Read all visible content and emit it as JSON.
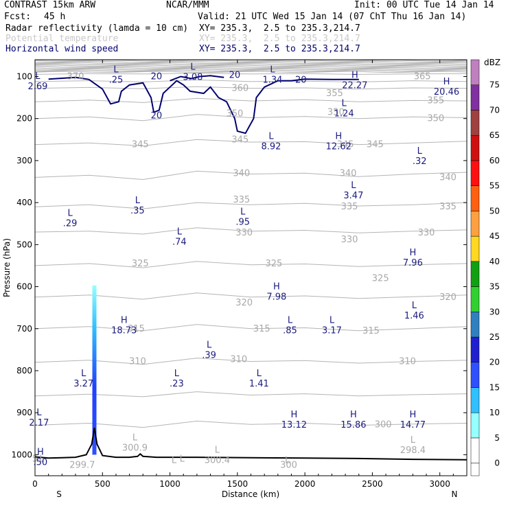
{
  "header": {
    "model": "CONTRAST 15km ARW",
    "center": "NCAR/MMM",
    "init": "Init: 00 UTC Tue 14 Jan 14",
    "fcst_label": "Fcst:",
    "fcst_value": "45 h",
    "valid": "Valid: 21 UTC Wed 15 Jan 14 (07 ChT Thu 16 Jan 14)",
    "fields": [
      {
        "name": "Radar reflectivity (lamda = 10 cm)",
        "xy": "XY= 235.3,  2.5 to 235.3,214.7"
      },
      {
        "name": "Potential temperature",
        "xy": "XY= 235.3,  2.5 to 235.3,214.7"
      },
      {
        "name": "Horizontal wind speed",
        "xy": "XY= 235.3,  2.5 to 235.3,214.7"
      }
    ]
  },
  "chart_data": {
    "type": "line",
    "xlabel": "Distance (km)",
    "ylabel": "Pressure (hPa)",
    "xlim": [
      0,
      3200
    ],
    "ylim": [
      1050,
      60
    ],
    "x_ticks": [
      0,
      500,
      1000,
      1500,
      2000,
      2500,
      3000
    ],
    "y_ticks": [
      100,
      200,
      300,
      400,
      500,
      600,
      700,
      800,
      900,
      1000
    ],
    "x_end_labels": {
      "left": "S",
      "right": "N"
    },
    "colorbar": {
      "unit": "dBZ",
      "levels": [
        0,
        5,
        10,
        15,
        20,
        25,
        30,
        35,
        40,
        45,
        50,
        55,
        60,
        65,
        70,
        75
      ],
      "colors": [
        "#ffffff",
        "#96ffff",
        "#30c0ff",
        "#3050ff",
        "#2020d0",
        "#3080c0",
        "#30d030",
        "#10a010",
        "#ffd820",
        "#ffa040",
        "#ff6010",
        "#ff1010",
        "#d01010",
        "#a04040",
        "#8030a0",
        "#c080c0"
      ]
    },
    "reflectivity_column": {
      "x": 440,
      "p_top": 597,
      "p_bottom": 1000
    },
    "theta_contours": [
      {
        "label": "370",
        "p": [
          95,
          93,
          94,
          92,
          94,
          93,
          95,
          94,
          93
        ]
      },
      {
        "label": "365",
        "p": [
          112,
          110,
          113,
          108,
          112,
          111,
          113,
          110,
          112
        ]
      },
      {
        "label": "360",
        "p": [
          128,
          126,
          129,
          124,
          128,
          127,
          130,
          127,
          128
        ]
      },
      {
        "label": "355",
        "p": [
          160,
          156,
          162,
          152,
          158,
          155,
          160,
          157,
          158
        ]
      },
      {
        "label": "350",
        "p": [
          200,
          196,
          205,
          190,
          198,
          195,
          200,
          196,
          198
        ]
      },
      {
        "label": "345",
        "p": [
          262,
          258,
          265,
          250,
          256,
          255,
          262,
          258,
          254
        ]
      },
      {
        "label": "340",
        "p": [
          340,
          335,
          345,
          325,
          332,
          330,
          338,
          332,
          328
        ]
      },
      {
        "label": "335",
        "p": [
          410,
          405,
          415,
          400,
          405,
          402,
          408,
          405,
          400
        ]
      },
      {
        "label": "330",
        "p": [
          470,
          468,
          475,
          460,
          468,
          466,
          472,
          468,
          465
        ]
      },
      {
        "label": "325",
        "p": [
          550,
          545,
          555,
          540,
          548,
          546,
          552,
          548,
          545
        ]
      },
      {
        "label": "320",
        "p": [
          625,
          620,
          630,
          615,
          625,
          622,
          628,
          624,
          620
        ]
      },
      {
        "label": "315",
        "p": [
          700,
          695,
          705,
          690,
          700,
          698,
          705,
          700,
          695
        ]
      },
      {
        "label": "310",
        "p": [
          780,
          775,
          785,
          770,
          778,
          776,
          782,
          778,
          775
        ]
      },
      {
        "label": "305",
        "p": [
          860,
          856,
          862,
          850,
          858,
          855,
          860,
          857,
          855
        ]
      },
      {
        "label": "300",
        "p": [
          930,
          925,
          935,
          920,
          928,
          925,
          930,
          927,
          925
        ]
      }
    ],
    "theta_x": [
      0,
      400,
      800,
      1200,
      1600,
      2000,
      2400,
      2800,
      3200
    ],
    "theta_labels": [
      {
        "text": "370",
        "x": 300,
        "p": 100
      },
      {
        "text": "365",
        "x": 2870,
        "p": 100
      },
      {
        "text": "360",
        "x": 1520,
        "p": 128
      },
      {
        "text": "355",
        "x": 2220,
        "p": 140
      },
      {
        "text": "355",
        "x": 2970,
        "p": 157
      },
      {
        "text": "350",
        "x": 1480,
        "p": 188
      },
      {
        "text": "350",
        "x": 2230,
        "p": 185
      },
      {
        "text": "350",
        "x": 2970,
        "p": 200
      },
      {
        "text": "345",
        "x": 780,
        "p": 262
      },
      {
        "text": "345",
        "x": 1520,
        "p": 250
      },
      {
        "text": "345",
        "x": 2300,
        "p": 262
      },
      {
        "text": "345",
        "x": 2520,
        "p": 262
      },
      {
        "text": "340",
        "x": 1530,
        "p": 330
      },
      {
        "text": "340",
        "x": 2320,
        "p": 330
      },
      {
        "text": "340",
        "x": 3060,
        "p": 340
      },
      {
        "text": "335",
        "x": 1530,
        "p": 393
      },
      {
        "text": "335",
        "x": 2330,
        "p": 410
      },
      {
        "text": "335",
        "x": 3060,
        "p": 410
      },
      {
        "text": "330",
        "x": 1550,
        "p": 472
      },
      {
        "text": "330",
        "x": 2330,
        "p": 488
      },
      {
        "text": "330",
        "x": 2900,
        "p": 472
      },
      {
        "text": "325",
        "x": 780,
        "p": 545
      },
      {
        "text": "325",
        "x": 1770,
        "p": 545
      },
      {
        "text": "325",
        "x": 2560,
        "p": 580
      },
      {
        "text": "320",
        "x": 1550,
        "p": 638
      },
      {
        "text": "320",
        "x": 3060,
        "p": 625
      },
      {
        "text": "315",
        "x": 750,
        "p": 700
      },
      {
        "text": "315",
        "x": 1680,
        "p": 700
      },
      {
        "text": "315",
        "x": 2490,
        "p": 705
      },
      {
        "text": "310",
        "x": 760,
        "p": 778
      },
      {
        "text": "310",
        "x": 1510,
        "p": 773
      },
      {
        "text": "310",
        "x": 2760,
        "p": 778
      },
      {
        "text": "300",
        "x": 2580,
        "p": 928
      },
      {
        "text": "L",
        "x": 50,
        "p": 1010
      },
      {
        "text": "5",
        "x": 0,
        "p": 1010
      },
      {
        "text": "L",
        "x": 1090,
        "p": 1010
      },
      {
        "text": "L",
        "x": 1030,
        "p": 1013
      },
      {
        "text": "L",
        "x": 1870,
        "p": 1013
      }
    ],
    "wind_contours": {
      "label": "20",
      "label_positions": [
        {
          "x": 900,
          "p": 100
        },
        {
          "x": 1480,
          "p": 97
        },
        {
          "x": 1970,
          "p": 108
        },
        {
          "x": 900,
          "p": 193
        }
      ]
    },
    "extrema": [
      {
        "kind": "L",
        "value": ".25",
        "x": 600,
        "p": 97,
        "color": "navy"
      },
      {
        "kind": "L",
        "value": "3.08",
        "x": 1170,
        "p": 90,
        "color": "navy"
      },
      {
        "kind": "L",
        "value": "1.34",
        "x": 1760,
        "p": 97,
        "color": "navy"
      },
      {
        "kind": "L",
        "value": "2.69",
        "x": 20,
        "p": 112,
        "color": "navy"
      },
      {
        "kind": "H",
        "value": "22.27",
        "x": 2370,
        "p": 110,
        "color": "navy"
      },
      {
        "kind": "H",
        "value": "20.46",
        "x": 3050,
        "p": 125,
        "color": "navy"
      },
      {
        "kind": "L",
        "value": "1.24",
        "x": 2290,
        "p": 177,
        "color": "navy"
      },
      {
        "kind": "L",
        "value": "8.92",
        "x": 1750,
        "p": 255,
        "color": "navy"
      },
      {
        "kind": "H",
        "value": "12.62",
        "x": 2250,
        "p": 255,
        "color": "navy"
      },
      {
        "kind": "L",
        "value": ".32",
        "x": 2850,
        "p": 290,
        "color": "navy"
      },
      {
        "kind": "L",
        "value": "3.47",
        "x": 2360,
        "p": 372,
        "color": "navy"
      },
      {
        "kind": "L",
        "value": ".35",
        "x": 760,
        "p": 408,
        "color": "navy"
      },
      {
        "kind": "L",
        "value": ".29",
        "x": 260,
        "p": 438,
        "color": "navy"
      },
      {
        "kind": "L",
        "value": ".95",
        "x": 1540,
        "p": 435,
        "color": "navy"
      },
      {
        "kind": "L",
        "value": ".74",
        "x": 1070,
        "p": 482,
        "color": "navy"
      },
      {
        "kind": "H",
        "value": "7.96",
        "x": 2800,
        "p": 532,
        "color": "navy"
      },
      {
        "kind": "H",
        "value": "7.98",
        "x": 1790,
        "p": 613,
        "color": "navy"
      },
      {
        "kind": "L",
        "value": "1.46",
        "x": 2810,
        "p": 658,
        "color": "navy"
      },
      {
        "kind": "H",
        "value": "18.73",
        "x": 660,
        "p": 693,
        "color": "navy"
      },
      {
        "kind": "L",
        "value": ".85",
        "x": 1890,
        "p": 693,
        "color": "navy"
      },
      {
        "kind": "L",
        "value": "3.17",
        "x": 2200,
        "p": 693,
        "color": "navy"
      },
      {
        "kind": "L",
        "value": ".39",
        "x": 1290,
        "p": 752,
        "color": "navy"
      },
      {
        "kind": "L",
        "value": "3.27",
        "x": 360,
        "p": 820,
        "color": "navy"
      },
      {
        "kind": "L",
        "value": ".23",
        "x": 1050,
        "p": 820,
        "color": "navy"
      },
      {
        "kind": "L",
        "value": "1.41",
        "x": 1660,
        "p": 820,
        "color": "navy"
      },
      {
        "kind": "H",
        "value": "13.12",
        "x": 1920,
        "p": 918,
        "color": "navy"
      },
      {
        "kind": "H",
        "value": "15.86",
        "x": 2360,
        "p": 918,
        "color": "navy"
      },
      {
        "kind": "H",
        "value": "14.77",
        "x": 2800,
        "p": 918,
        "color": "navy"
      },
      {
        "kind": "L",
        "value": "2.17",
        "x": 30,
        "p": 913,
        "color": "navy"
      },
      {
        "kind": "L",
        "value": "300.9",
        "x": 740,
        "p": 972,
        "color": "gray"
      },
      {
        "kind": "L",
        "value": "300.4",
        "x": 1350,
        "p": 1002,
        "color": "gray"
      },
      {
        "kind": "L",
        "value": "298.4",
        "x": 2800,
        "p": 978,
        "color": "gray"
      },
      {
        "kind": "H",
        "value": ".50",
        "x": 40,
        "p": 1007,
        "color": "navy"
      },
      {
        "kind": "",
        "value": "299.7",
        "x": 350,
        "p": 1013,
        "color": "gray"
      },
      {
        "kind": "",
        "value": "300",
        "x": 1880,
        "p": 1013,
        "color": "gray"
      }
    ],
    "terrain": {
      "x": [
        0,
        100,
        200,
        300,
        380,
        420,
        440,
        460,
        500,
        600,
        700,
        760,
        780,
        800,
        900,
        1200,
        1600,
        2000,
        2400,
        2800,
        3200
      ],
      "p": [
        1005,
        1008,
        1007,
        1006,
        1000,
        975,
        936,
        975,
        1002,
        1006,
        1006,
        1004,
        998,
        1004,
        1006,
        1006,
        1007,
        1008,
        1009,
        1011,
        1012
      ]
    }
  }
}
